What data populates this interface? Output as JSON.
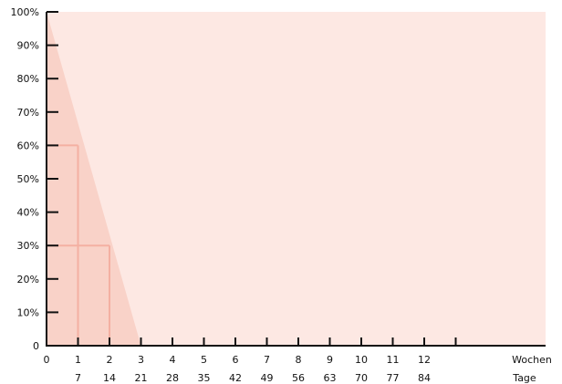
{
  "chart_data": {
    "type": "area",
    "title": "",
    "xlabel": "",
    "ylabel": "",
    "xlim": [
      0,
      15
    ],
    "ylim": [
      0,
      100
    ],
    "x_unit_labels": [
      "Wochen",
      "Tage"
    ],
    "x_ticks_weeks": [
      "0",
      "1",
      "2",
      "3",
      "4",
      "5",
      "6",
      "7",
      "8",
      "9",
      "10",
      "11",
      "12"
    ],
    "x_ticks_days": [
      "7",
      "14",
      "21",
      "28",
      "35",
      "42",
      "49",
      "56",
      "63",
      "70",
      "77",
      "84"
    ],
    "y_ticks": [
      "0",
      "10%",
      "20%",
      "30%",
      "40%",
      "50%",
      "60%",
      "70%",
      "80%",
      "90%",
      "100%"
    ],
    "series": [
      {
        "x": [
          0,
          3
        ],
        "y": [
          100,
          0
        ],
        "color": "#f9d2c8"
      }
    ],
    "reference_points": [
      {
        "x": 1,
        "y": 60
      },
      {
        "x": 2,
        "y": 30
      }
    ],
    "colors": {
      "background": "#fde8e3",
      "area": "#f9d2c8",
      "guide": "#f4b0a2",
      "axis": "#111111"
    }
  }
}
